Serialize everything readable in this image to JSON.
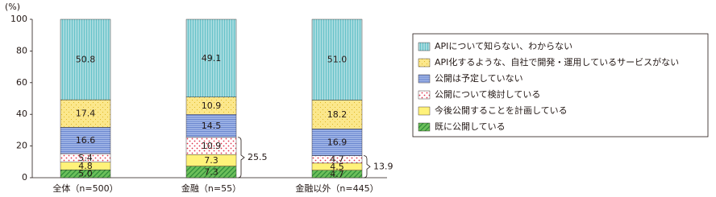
{
  "chart_data": {
    "type": "stacked-bar",
    "y_label": "(%)",
    "categories": [
      "全体（n=500）",
      "金融（n=55）",
      "金融以外（n=445）"
    ],
    "ylim": [
      0,
      100
    ],
    "yticks": [
      0,
      20,
      40,
      60,
      80,
      100
    ],
    "grid": false,
    "series": [
      {
        "name": "既に公開している",
        "color": "#6cbf5a",
        "values": [
          5.0,
          7.3,
          4.7
        ],
        "value_labels": [
          "5.0",
          "7.3",
          "4.7"
        ]
      },
      {
        "name": "今後公開することを計画している",
        "color": "#fff27a",
        "values": [
          4.8,
          7.3,
          4.5
        ],
        "value_labels": [
          "4.8",
          "7.3",
          "4.5"
        ]
      },
      {
        "name": "公開について検討している",
        "color": "#f6b6bd",
        "values": [
          5.4,
          10.9,
          4.7
        ],
        "value_labels": [
          "5.4",
          "10.9",
          "4.7"
        ]
      },
      {
        "name": "公開は予定していない",
        "color": "#a3b8e8",
        "values": [
          16.6,
          14.5,
          16.9
        ],
        "value_labels": [
          "16.6",
          "14.5",
          "16.9"
        ]
      },
      {
        "name": "API化するような、自社で開発・運用しているサービスがない",
        "color": "#fbe78c",
        "values": [
          17.4,
          10.9,
          18.2
        ],
        "value_labels": [
          "17.4",
          "10.9",
          "18.2"
        ]
      },
      {
        "name": "APIについて知らない、わからない",
        "color": "#67c2c9",
        "values": [
          50.8,
          49.1,
          51.0
        ],
        "value_labels": [
          "50.8",
          "49.1",
          "51.0"
        ]
      }
    ],
    "annotations": [
      "25.5",
      "13.9"
    ],
    "legend": "right"
  }
}
